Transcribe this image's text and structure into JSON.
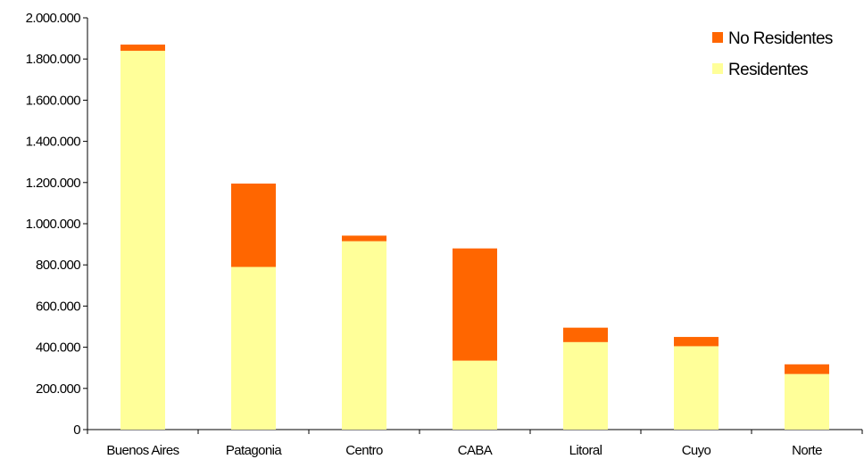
{
  "chart_data": {
    "type": "bar",
    "stacked": true,
    "categories": [
      "Buenos Aires",
      "Patagonia",
      "Centro",
      "CABA",
      "Litoral",
      "Cuyo",
      "Norte"
    ],
    "series": [
      {
        "name": "Residentes",
        "color": "#FFFF99",
        "values": [
          1840000,
          790000,
          915000,
          335000,
          425000,
          405000,
          270000
        ]
      },
      {
        "name": "No Residentes",
        "color": "#FF6600",
        "values": [
          30000,
          405000,
          27000,
          545000,
          70000,
          45000,
          47000
        ]
      }
    ],
    "y_ticks": [
      "0",
      "200.000",
      "400.000",
      "600.000",
      "800.000",
      "1.000.000",
      "1.200.000",
      "1.400.000",
      "1.600.000",
      "1.800.000",
      "2.000.000"
    ],
    "ylim": [
      0,
      2000000
    ],
    "legend_position": "top-right",
    "legend": [
      "No Residentes",
      "Residentes"
    ],
    "grid": false,
    "title": "",
    "xlabel": "",
    "ylabel": ""
  }
}
